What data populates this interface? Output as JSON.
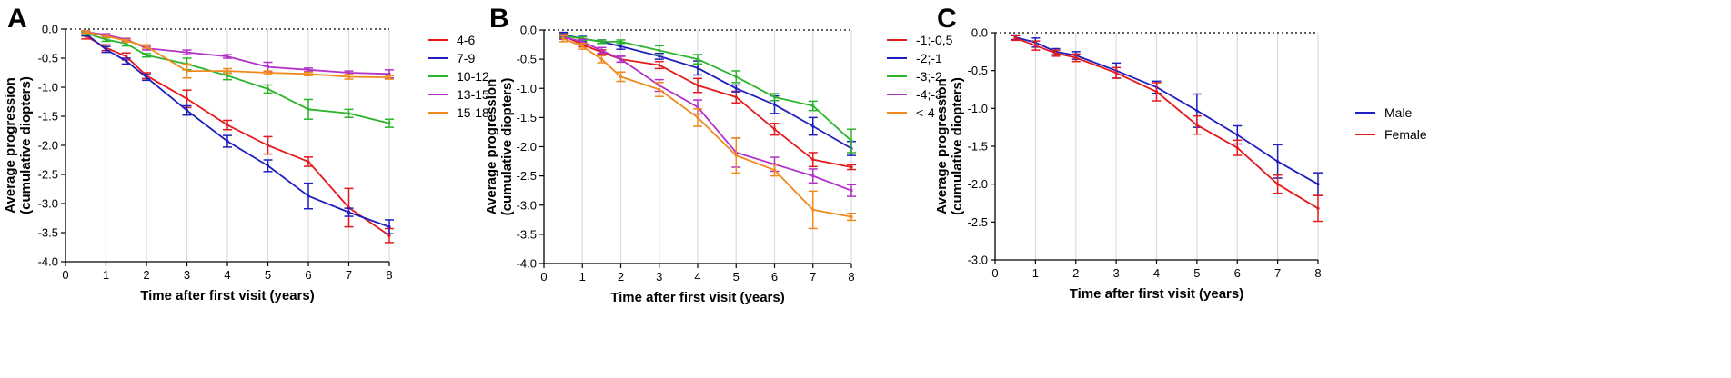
{
  "chart_data": [
    {
      "panel": "A",
      "type": "line",
      "xlabel": "Time after first visit (years)",
      "ylabel_line1": "Average progression",
      "ylabel_line2": "(cumulative diopters)",
      "xlim": [
        0,
        8
      ],
      "ylim": [
        -4.0,
        0.0
      ],
      "xticks": [
        0,
        1,
        2,
        3,
        4,
        5,
        6,
        7,
        8
      ],
      "xtick_labels": [
        "0",
        "1",
        "2",
        "3",
        "4",
        "5",
        "6",
        "7",
        "8"
      ],
      "yticks": [
        0,
        -0.5,
        -1,
        -1.5,
        -2,
        -2.5,
        -3,
        -3.5,
        -4
      ],
      "ytick_labels": [
        "0.0",
        "-0.5",
        "-1.0",
        "-1.5",
        "-2.0",
        "-2.5",
        "-3.0",
        "-3.5",
        "-4.0"
      ],
      "x": [
        0.5,
        1,
        1.5,
        2,
        3,
        4,
        5,
        6,
        7,
        8
      ],
      "zero_line": true,
      "series": [
        {
          "name": "4-6",
          "color": "#e41a1c",
          "values": [
            -0.12,
            -0.32,
            -0.47,
            -0.8,
            -1.2,
            -1.65,
            -2.0,
            -2.28,
            -3.07,
            -3.55
          ],
          "errors": [
            0.05,
            0.05,
            0.06,
            0.05,
            0.15,
            0.08,
            0.15,
            0.08,
            0.33,
            0.12
          ]
        },
        {
          "name": "7-9",
          "color": "#1f1fbf",
          "values": [
            -0.08,
            -0.35,
            -0.55,
            -0.83,
            -1.4,
            -1.93,
            -2.35,
            -2.87,
            -3.15,
            -3.4
          ],
          "errors": [
            0.04,
            0.05,
            0.05,
            0.05,
            0.08,
            0.1,
            0.1,
            0.22,
            0.07,
            0.12
          ]
        },
        {
          "name": "10-12",
          "color": "#2cb52c",
          "values": [
            -0.07,
            -0.18,
            -0.25,
            -0.45,
            -0.6,
            -0.8,
            -1.03,
            -1.38,
            -1.45,
            -1.62
          ],
          "errors": [
            0.03,
            0.03,
            0.04,
            0.03,
            0.1,
            0.07,
            0.07,
            0.17,
            0.07,
            0.07
          ]
        },
        {
          "name": "13-15",
          "color": "#b232c7",
          "values": [
            -0.05,
            -0.1,
            -0.18,
            -0.33,
            -0.4,
            -0.47,
            -0.65,
            -0.7,
            -0.75,
            -0.77
          ],
          "errors": [
            0.02,
            0.02,
            0.02,
            0.03,
            0.04,
            0.03,
            0.08,
            0.03,
            0.03,
            0.07
          ]
        },
        {
          "name": "15-18",
          "color": "#f08a1c",
          "values": [
            -0.05,
            -0.12,
            -0.2,
            -0.3,
            -0.72,
            -0.72,
            -0.75,
            -0.77,
            -0.82,
            -0.83
          ],
          "errors": [
            0.02,
            0.02,
            0.02,
            0.03,
            0.12,
            0.04,
            0.03,
            0.03,
            0.04,
            0.03
          ]
        }
      ]
    },
    {
      "panel": "B",
      "type": "line",
      "xlabel": "Time after first visit (years)",
      "ylabel_line1": "Average progression",
      "ylabel_line2": "(cumulative diopters)",
      "xlim": [
        0,
        8
      ],
      "ylim": [
        -4.0,
        0.0
      ],
      "xticks": [
        0,
        1,
        2,
        3,
        4,
        5,
        6,
        7,
        8
      ],
      "xtick_labels": [
        "0",
        "1",
        "2",
        "3",
        "4",
        "5",
        "6",
        "7",
        "8"
      ],
      "yticks": [
        0,
        -0.5,
        -1,
        -1.5,
        -2,
        -2.5,
        -3,
        -3.5,
        -4
      ],
      "ytick_labels": [
        "0.0",
        "-0.5",
        "-1.0",
        "-1.5",
        "-2.0",
        "-2.5",
        "-3.0",
        "-3.5",
        "-4.0"
      ],
      "x": [
        0.5,
        1,
        1.5,
        2,
        3,
        4,
        5,
        6,
        7,
        8
      ],
      "zero_line": true,
      "series": [
        {
          "name": "-1;-0,5",
          "color": "#e41a1c",
          "values": [
            -0.1,
            -0.25,
            -0.38,
            -0.5,
            -0.6,
            -0.95,
            -1.15,
            -1.7,
            -2.22,
            -2.35
          ],
          "errors": [
            0.05,
            0.04,
            0.04,
            0.05,
            0.06,
            0.12,
            0.1,
            0.1,
            0.12,
            0.04
          ]
        },
        {
          "name": "-2;-1",
          "color": "#1f1fbf",
          "values": [
            -0.08,
            -0.15,
            -0.2,
            -0.28,
            -0.45,
            -0.65,
            -1.0,
            -1.28,
            -1.65,
            -2.03
          ],
          "errors": [
            0.04,
            0.04,
            0.03,
            0.05,
            0.05,
            0.12,
            0.06,
            0.15,
            0.15,
            0.12
          ]
        },
        {
          "name": "-3;-2",
          "color": "#2cb52c",
          "values": [
            -0.1,
            -0.15,
            -0.2,
            -0.2,
            -0.35,
            -0.5,
            -0.8,
            -1.15,
            -1.3,
            -1.9
          ],
          "errors": [
            0.03,
            0.03,
            0.03,
            0.03,
            0.08,
            0.08,
            0.1,
            0.06,
            0.08,
            0.2
          ]
        },
        {
          "name": "-4;-3",
          "color": "#b232c7",
          "values": [
            -0.12,
            -0.2,
            -0.35,
            -0.5,
            -0.95,
            -1.32,
            -2.1,
            -2.3,
            -2.5,
            -2.75
          ],
          "errors": [
            0.04,
            0.04,
            0.05,
            0.05,
            0.1,
            0.12,
            0.25,
            0.12,
            0.12,
            0.1
          ]
        },
        {
          "name": "<-4",
          "color": "#f08a1c",
          "values": [
            -0.15,
            -0.28,
            -0.5,
            -0.8,
            -1.02,
            -1.5,
            -2.15,
            -2.4,
            -3.08,
            -3.2
          ],
          "errors": [
            0.05,
            0.05,
            0.06,
            0.08,
            0.12,
            0.15,
            0.3,
            0.1,
            0.32,
            0.06
          ]
        }
      ]
    },
    {
      "panel": "C",
      "type": "line",
      "xlabel": "Time after first visit (years)",
      "ylabel_line1": "Average progression",
      "ylabel_line2": "(cumulative diopters)",
      "xlim": [
        0,
        8
      ],
      "ylim": [
        -3.0,
        0.0
      ],
      "xticks": [
        0,
        1,
        2,
        3,
        4,
        5,
        6,
        7,
        8
      ],
      "xtick_labels": [
        "0",
        "1",
        "2",
        "3",
        "4",
        "5",
        "6",
        "7",
        "8"
      ],
      "yticks": [
        0,
        -0.5,
        -1,
        -1.5,
        -2,
        -2.5,
        -3
      ],
      "ytick_labels": [
        "0.0",
        "-0.5",
        "-1.0",
        "-1.5",
        "-2.0",
        "-2.5",
        "-3.0"
      ],
      "x": [
        0.5,
        1,
        1.5,
        2,
        3,
        4,
        5,
        6,
        7,
        8
      ],
      "zero_line": true,
      "series": [
        {
          "name": "Male",
          "color": "#1f1fbf",
          "values": [
            -0.06,
            -0.13,
            -0.25,
            -0.3,
            -0.5,
            -0.72,
            -1.03,
            -1.35,
            -1.7,
            -2.0
          ],
          "errors": [
            0.03,
            0.06,
            0.04,
            0.05,
            0.1,
            0.08,
            0.22,
            0.12,
            0.22,
            0.15
          ]
        },
        {
          "name": "Female",
          "color": "#e41a1c",
          "values": [
            -0.07,
            -0.17,
            -0.27,
            -0.33,
            -0.53,
            -0.78,
            -1.22,
            -1.52,
            -2.0,
            -2.32
          ],
          "errors": [
            0.03,
            0.06,
            0.04,
            0.05,
            0.07,
            0.12,
            0.12,
            0.1,
            0.12,
            0.17
          ]
        }
      ]
    }
  ]
}
